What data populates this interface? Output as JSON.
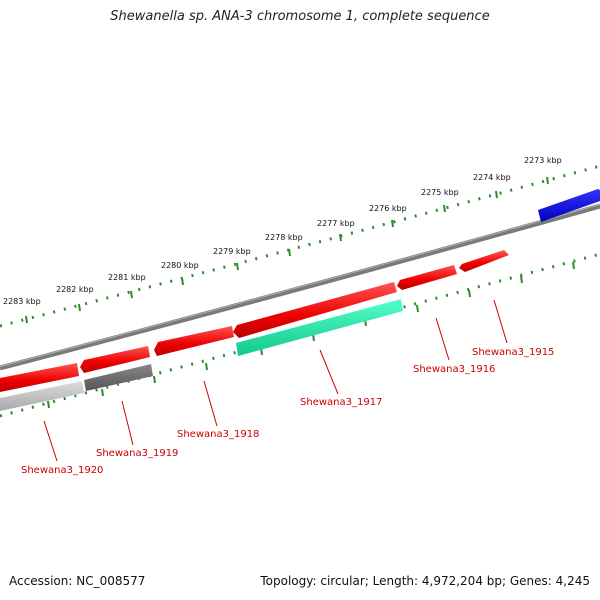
{
  "title": "Shewanella sp. ANA-3 chromosome 1, complete sequence",
  "footer": {
    "accession": "Accession: NC_008577",
    "info": "Topology: circular; Length: 4,972,204 bp; Genes: 4,245"
  },
  "colors": {
    "backbone": "#808080",
    "tick": "#2e8b2e",
    "gene_red": "#ee0000",
    "gene_grey": "#666666",
    "gene_lightgrey": "#bbbbbb",
    "gene_teal": "#22e0a0",
    "gene_blue": "#0000dd",
    "label": "#cc0000"
  },
  "scale_labels": [
    "2273 kbp",
    "2274 kbp",
    "2275 kbp",
    "2276 kbp",
    "2277 kbp",
    "2278 kbp",
    "2279 kbp",
    "2280 kbp",
    "2281 kbp",
    "2282 kbp",
    "2283 kbp"
  ],
  "gene_labels": [
    "Shewana3_1915",
    "Shewana3_1916",
    "Shewana3_1917",
    "Shewana3_1918",
    "Shewana3_1919",
    "Shewana3_1920"
  ]
}
